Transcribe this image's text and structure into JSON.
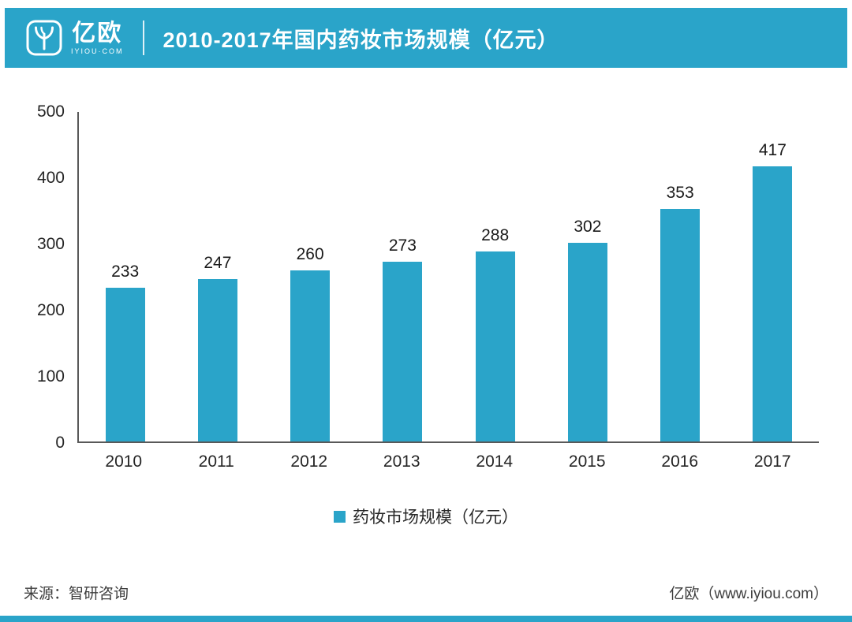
{
  "colors": {
    "accent": "#2AA4C9"
  },
  "header": {
    "brand_name": "亿欧",
    "brand_sub": "IYIOU·COM",
    "title": "2010-2017年国内药妆市场规模（亿元）"
  },
  "chart_data": {
    "type": "bar",
    "title": "2010-2017年国内药妆市场规模（亿元）",
    "categories": [
      "2010",
      "2011",
      "2012",
      "2013",
      "2014",
      "2015",
      "2016",
      "2017"
    ],
    "values": [
      233,
      247,
      260,
      273,
      288,
      302,
      353,
      417
    ],
    "xlabel": "",
    "ylabel": "",
    "ylim": [
      0,
      500
    ],
    "yticks": [
      0,
      100,
      200,
      300,
      400,
      500
    ],
    "grid": false,
    "legend": [
      "药妆市场规模（亿元）"
    ],
    "legend_position": "bottom",
    "bar_color": "#2AA4C9"
  },
  "legend": {
    "label": "药妆市场规模（亿元）"
  },
  "footer": {
    "source": "来源：智研咨询",
    "brand": "亿欧（www.iyiou.com）"
  }
}
